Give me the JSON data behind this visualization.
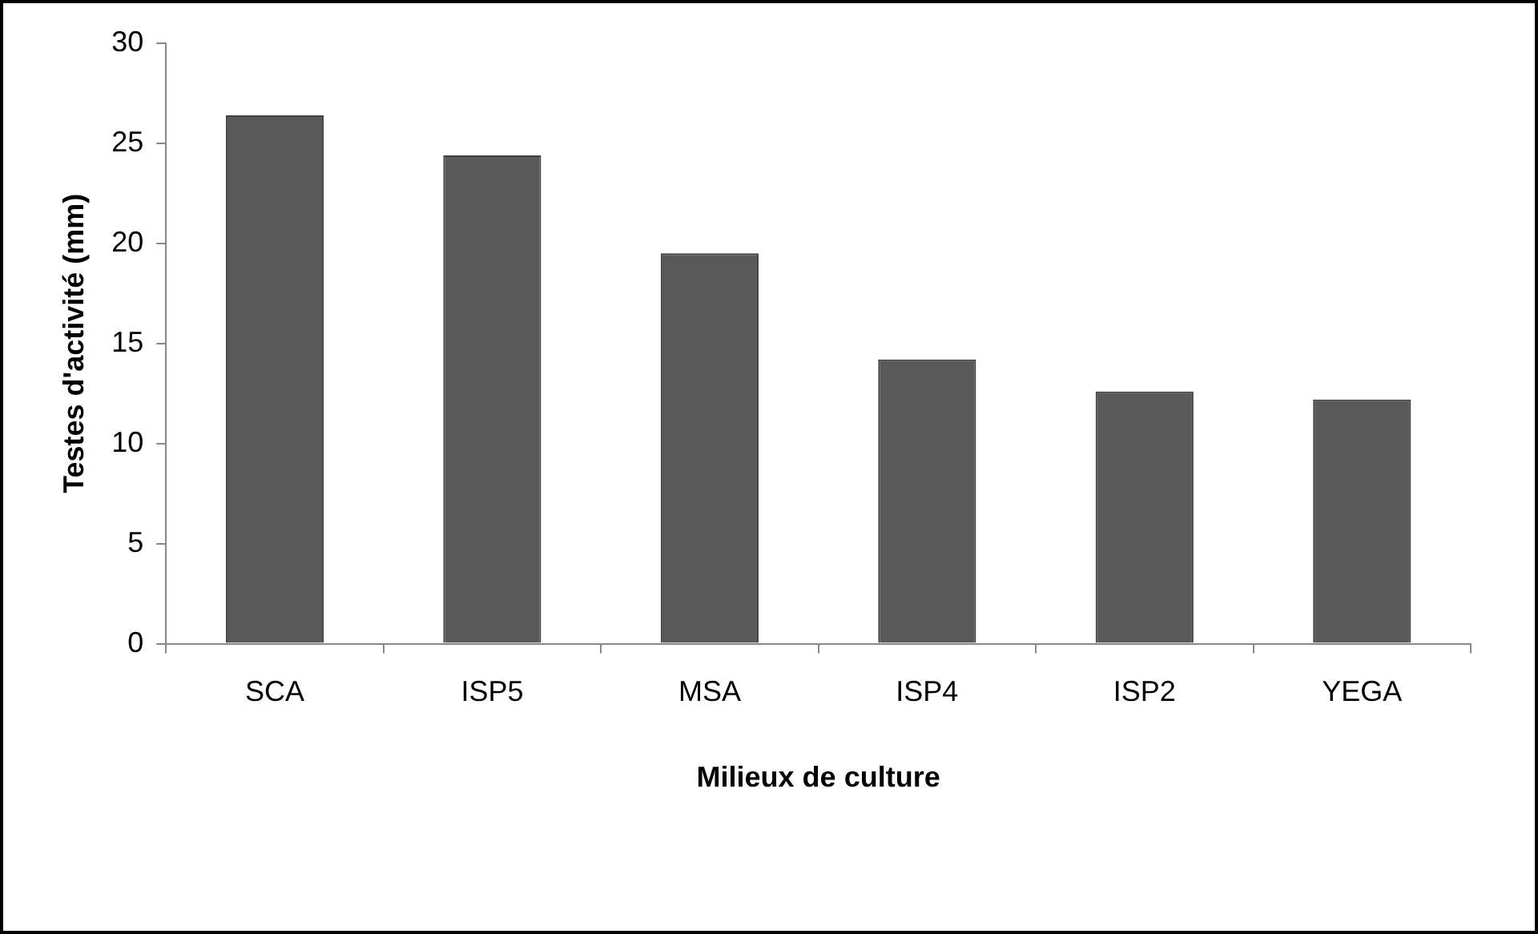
{
  "chart_data": {
    "type": "bar",
    "xlabel": "Milieux de culture",
    "ylabel": "Testes d'activité (mm)",
    "categories": [
      "SCA",
      "ISP5",
      "MSA",
      "ISP4",
      "ISP2",
      "YEGA"
    ],
    "values": [
      26.4,
      24.4,
      19.5,
      14.2,
      12.6,
      12.2
    ],
    "color": "#595959",
    "ylim": [
      0,
      30
    ],
    "yticks": [
      0,
      5,
      10,
      15,
      20,
      25,
      30
    ],
    "grid": false,
    "legend": false
  }
}
